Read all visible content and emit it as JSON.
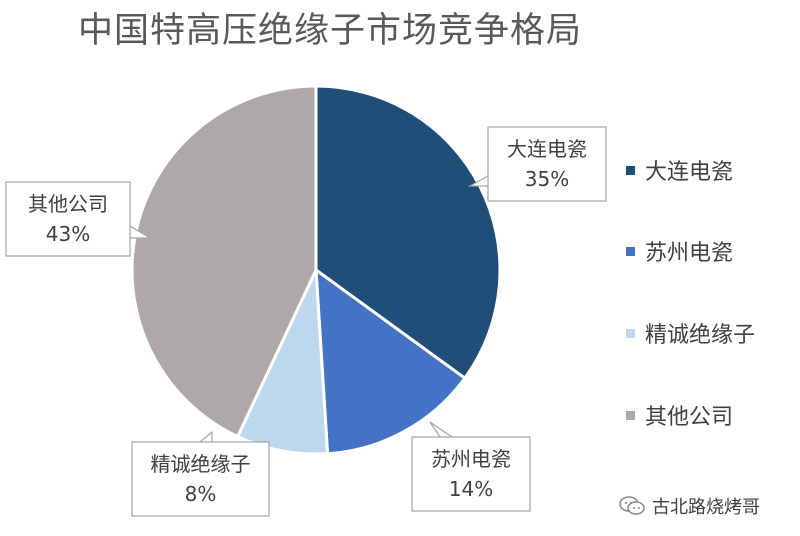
{
  "title": "中国特高压绝缘子市场竞争格局",
  "chart_data": {
    "type": "pie",
    "title": "中国特高压绝缘子市场竞争格局",
    "slices": [
      {
        "label": "大连电瓷",
        "value": 35,
        "pct_label": "35%",
        "color": "#1F4E79"
      },
      {
        "label": "苏州电瓷",
        "value": 14,
        "pct_label": "14%",
        "color": "#4472C4"
      },
      {
        "label": "精诚绝缘子",
        "value": 8,
        "pct_label": "8%",
        "color": "#BDD7EE"
      },
      {
        "label": "其他公司",
        "value": 43,
        "pct_label": "43%",
        "color": "#ADA9AB"
      }
    ],
    "legend_position": "right",
    "start_angle": "12 o'clock",
    "direction": "clockwise"
  },
  "legend": [
    "大连电瓷",
    "苏州电瓷",
    "精诚绝缘子",
    "其他公司"
  ],
  "watermark": "古北路烧烤哥"
}
